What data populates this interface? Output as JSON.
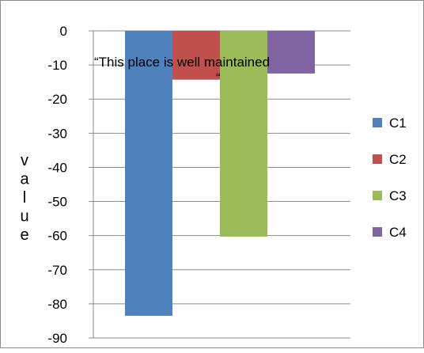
{
  "chart_data": {
    "type": "bar",
    "title": "",
    "xlabel": "",
    "ylabel": "value",
    "ylim": [
      -90,
      0
    ],
    "yticks": [
      0,
      -10,
      -20,
      -30,
      -40,
      -50,
      -60,
      -70,
      -80,
      -90
    ],
    "grid": true,
    "legend_position": "right",
    "annotation": {
      "line1": "“This place is  well maintained",
      "line2": "“"
    },
    "series": [
      {
        "name": "C1",
        "values": [
          -83.5
        ],
        "color": "#4F81BD"
      },
      {
        "name": "C2",
        "values": [
          -14.3
        ],
        "color": "#C0504D"
      },
      {
        "name": "C3",
        "values": [
          -60.3
        ],
        "color": "#9BBB59"
      },
      {
        "name": "C4",
        "values": [
          -12.5
        ],
        "color": "#8064A2"
      }
    ]
  }
}
